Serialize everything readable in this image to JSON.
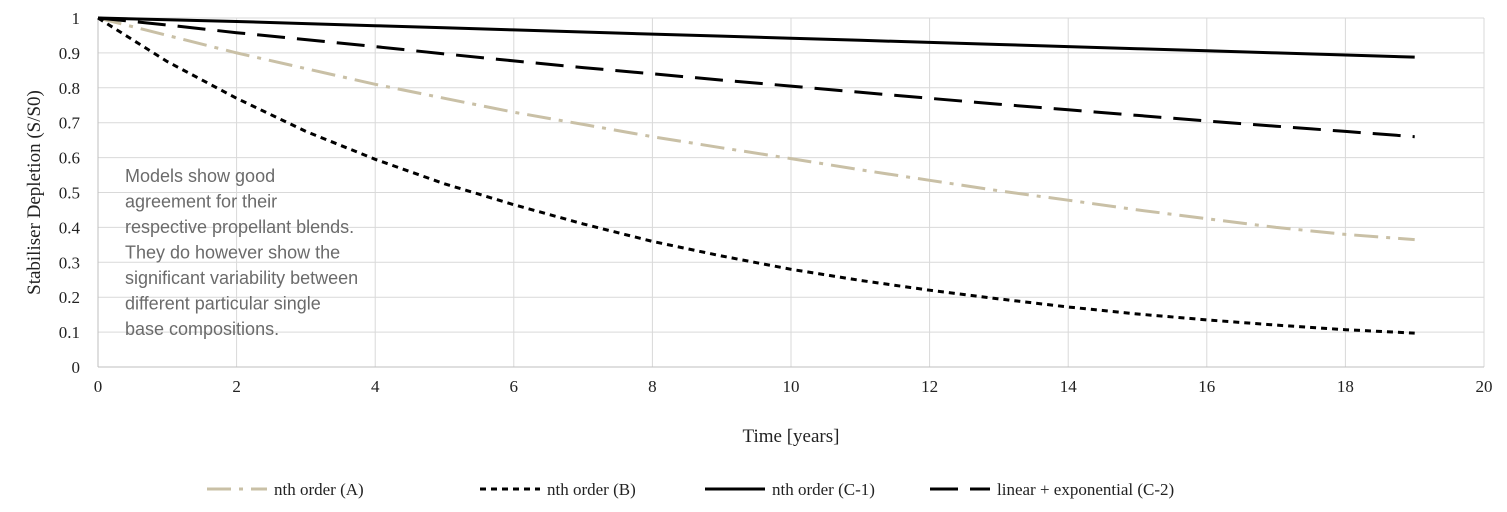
{
  "chart_data": {
    "type": "line",
    "xlabel": "Time [years]",
    "ylabel": "Stabiliser Depletion (S/S0)",
    "xlim": [
      0,
      20
    ],
    "ylim": [
      0,
      1
    ],
    "x_ticks": [
      "0",
      "2",
      "4",
      "6",
      "8",
      "10",
      "12",
      "14",
      "16",
      "18",
      "20"
    ],
    "y_ticks": [
      "0",
      "0.1",
      "0.2",
      "0.3",
      "0.4",
      "0.5",
      "0.6",
      "0.7",
      "0.8",
      "0.9",
      "1"
    ],
    "grid": true,
    "legend_position": "bottom",
    "annotation": [
      "Models show good",
      "agreement for their",
      "respective propellant blends.",
      "They do however show the",
      "significant variability between",
      "different particular single",
      "base compositions."
    ],
    "x": [
      0,
      1,
      2,
      3,
      4,
      5,
      6,
      7,
      8,
      9,
      10,
      11,
      12,
      13,
      14,
      15,
      16,
      17,
      18,
      19
    ],
    "series": [
      {
        "name": "nth order (A)",
        "color": "#c9c0a6",
        "style": "dashdot",
        "values": [
          1.0,
          0.95,
          0.9,
          0.855,
          0.81,
          0.77,
          0.73,
          0.695,
          0.66,
          0.628,
          0.597,
          0.565,
          0.535,
          0.505,
          0.478,
          0.45,
          0.425,
          0.4,
          0.38,
          0.365
        ]
      },
      {
        "name": "nth order (B)",
        "color": "#000000",
        "style": "dotted",
        "values": [
          1.0,
          0.875,
          0.77,
          0.675,
          0.595,
          0.525,
          0.465,
          0.41,
          0.36,
          0.318,
          0.28,
          0.248,
          0.22,
          0.195,
          0.172,
          0.152,
          0.135,
          0.12,
          0.107,
          0.097
        ]
      },
      {
        "name": "nth order (C-1)",
        "color": "#000000",
        "style": "solid",
        "values": [
          1.0,
          0.995,
          0.99,
          0.984,
          0.978,
          0.972,
          0.966,
          0.96,
          0.954,
          0.948,
          0.942,
          0.936,
          0.93,
          0.924,
          0.918,
          0.912,
          0.906,
          0.9,
          0.894,
          0.888
        ]
      },
      {
        "name": "linear + exponential (C-2)",
        "color": "#000000",
        "style": "dashed",
        "values": [
          1.0,
          0.98,
          0.958,
          0.938,
          0.918,
          0.897,
          0.877,
          0.858,
          0.84,
          0.822,
          0.805,
          0.787,
          0.77,
          0.753,
          0.737,
          0.721,
          0.705,
          0.69,
          0.675,
          0.66
        ]
      }
    ]
  }
}
